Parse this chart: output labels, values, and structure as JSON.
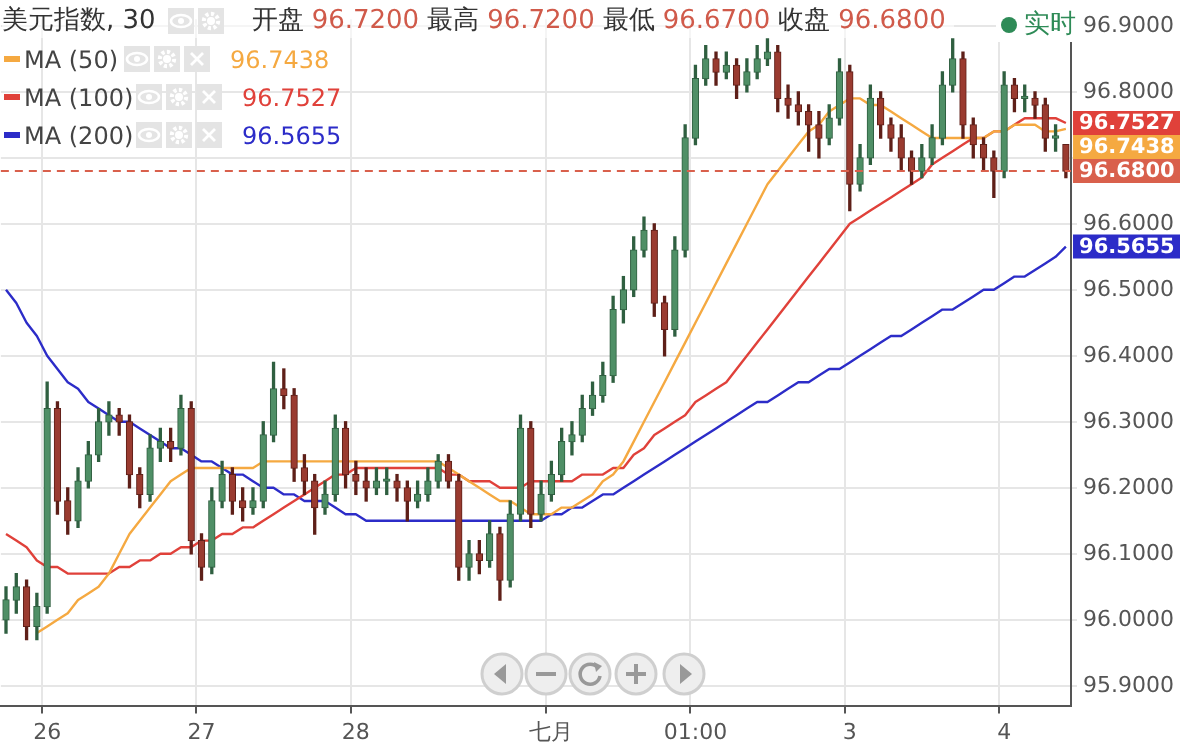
{
  "chart_data": {
    "type": "candlestick",
    "title": "美元指数, 30",
    "subtitle": "开盘 96.7200 最高 96.7200 最低 96.6700 收盘 96.6800",
    "annotations": [
      "实时"
    ],
    "categories": [
      null,
      null,
      null,
      null,
      "26",
      null,
      null,
      null,
      null,
      null,
      null,
      null,
      null,
      null,
      null,
      null,
      null,
      null,
      null,
      "27",
      null,
      null,
      null,
      null,
      null,
      null,
      null,
      null,
      null,
      null,
      null,
      null,
      null,
      null,
      "28",
      null,
      null,
      null,
      null,
      null,
      null,
      null,
      null,
      null,
      null,
      null,
      null,
      null,
      null,
      null,
      null,
      null,
      null,
      "七月",
      null,
      null,
      null,
      null,
      null,
      null,
      null,
      null,
      null,
      null,
      null,
      null,
      null,
      "01:00",
      null,
      null,
      null,
      null,
      null,
      null,
      null,
      null,
      null,
      null,
      null,
      null,
      null,
      null,
      "3",
      null,
      null,
      null,
      null,
      null,
      null,
      null,
      null,
      null,
      null,
      null,
      null,
      null,
      null,
      "4",
      null,
      null,
      null,
      null,
      null,
      null
    ],
    "ohlc": [
      [
        96.0,
        96.05,
        95.98,
        96.03
      ],
      [
        96.03,
        96.07,
        96.01,
        96.05
      ],
      [
        96.05,
        96.06,
        95.97,
        95.99
      ],
      [
        95.99,
        96.04,
        95.97,
        96.02
      ],
      [
        96.02,
        96.36,
        96.01,
        96.32
      ],
      [
        96.32,
        96.33,
        96.16,
        96.18
      ],
      [
        96.18,
        96.2,
        96.13,
        96.15
      ],
      [
        96.15,
        96.23,
        96.14,
        96.21
      ],
      [
        96.21,
        96.27,
        96.2,
        96.25
      ],
      [
        96.25,
        96.32,
        96.24,
        96.3
      ],
      [
        96.3,
        96.33,
        96.28,
        96.31
      ],
      [
        96.31,
        96.32,
        96.28,
        96.3
      ],
      [
        96.3,
        96.31,
        96.2,
        96.22
      ],
      [
        96.22,
        96.23,
        96.17,
        96.19
      ],
      [
        96.19,
        96.28,
        96.18,
        96.26
      ],
      [
        96.26,
        96.29,
        96.24,
        96.27
      ],
      [
        96.27,
        96.29,
        96.24,
        96.26
      ],
      [
        96.26,
        96.34,
        96.25,
        96.32
      ],
      [
        96.32,
        96.33,
        96.1,
        96.12
      ],
      [
        96.12,
        96.13,
        96.06,
        96.08
      ],
      [
        96.08,
        96.2,
        96.07,
        96.18
      ],
      [
        96.18,
        96.24,
        96.17,
        96.22
      ],
      [
        96.22,
        96.23,
        96.16,
        96.18
      ],
      [
        96.18,
        96.2,
        96.15,
        96.17
      ],
      [
        96.17,
        96.2,
        96.16,
        96.18
      ],
      [
        96.18,
        96.3,
        96.17,
        96.28
      ],
      [
        96.28,
        96.39,
        96.27,
        96.35
      ],
      [
        96.35,
        96.38,
        96.32,
        96.34
      ],
      [
        96.34,
        96.35,
        96.21,
        96.23
      ],
      [
        96.23,
        96.25,
        96.19,
        96.21
      ],
      [
        96.21,
        96.22,
        96.13,
        96.17
      ],
      [
        96.17,
        96.21,
        96.16,
        96.19
      ],
      [
        96.19,
        96.31,
        96.18,
        96.29
      ],
      [
        96.29,
        96.3,
        96.2,
        96.22
      ],
      [
        96.22,
        96.24,
        96.19,
        96.21
      ],
      [
        96.21,
        96.23,
        96.18,
        96.2
      ],
      [
        96.2,
        96.23,
        96.19,
        96.21
      ],
      [
        96.21,
        96.23,
        96.19,
        96.21
      ],
      [
        96.21,
        96.22,
        96.18,
        96.2
      ],
      [
        96.2,
        96.21,
        96.15,
        96.18
      ],
      [
        96.18,
        96.21,
        96.17,
        96.19
      ],
      [
        96.19,
        96.23,
        96.18,
        96.21
      ],
      [
        96.21,
        96.25,
        96.2,
        96.24
      ],
      [
        96.24,
        96.25,
        96.2,
        96.21
      ],
      [
        96.21,
        96.22,
        96.06,
        96.08
      ],
      [
        96.08,
        96.12,
        96.06,
        96.1
      ],
      [
        96.1,
        96.12,
        96.07,
        96.09
      ],
      [
        96.09,
        96.15,
        96.08,
        96.13
      ],
      [
        96.13,
        96.14,
        96.03,
        96.06
      ],
      [
        96.06,
        96.18,
        96.05,
        96.16
      ],
      [
        96.16,
        96.31,
        96.15,
        96.29
      ],
      [
        96.29,
        96.3,
        96.14,
        96.16
      ],
      [
        96.16,
        96.21,
        96.15,
        96.19
      ],
      [
        96.19,
        96.24,
        96.18,
        96.22
      ],
      [
        96.22,
        96.29,
        96.21,
        96.27
      ],
      [
        96.27,
        96.3,
        96.25,
        96.28
      ],
      [
        96.28,
        96.34,
        96.27,
        96.32
      ],
      [
        96.32,
        96.36,
        96.31,
        96.34
      ],
      [
        96.34,
        96.39,
        96.33,
        96.37
      ],
      [
        96.37,
        96.49,
        96.36,
        96.47
      ],
      [
        96.47,
        96.52,
        96.45,
        96.5
      ],
      [
        96.5,
        96.58,
        96.49,
        96.56
      ],
      [
        96.56,
        96.61,
        96.55,
        96.59
      ],
      [
        96.59,
        96.6,
        96.46,
        96.48
      ],
      [
        96.48,
        96.49,
        96.4,
        96.44
      ],
      [
        96.44,
        96.58,
        96.43,
        96.56
      ],
      [
        96.56,
        96.75,
        96.55,
        96.73
      ],
      [
        96.73,
        96.84,
        96.72,
        96.82
      ],
      [
        96.82,
        96.87,
        96.81,
        96.85
      ],
      [
        96.85,
        96.86,
        96.81,
        96.83
      ],
      [
        96.83,
        96.86,
        96.82,
        96.84
      ],
      [
        96.84,
        96.85,
        96.79,
        96.81
      ],
      [
        96.81,
        96.85,
        96.8,
        96.83
      ],
      [
        96.83,
        96.87,
        96.82,
        96.85
      ],
      [
        96.85,
        96.88,
        96.84,
        96.86
      ],
      [
        96.86,
        96.87,
        96.77,
        96.79
      ],
      [
        96.79,
        96.81,
        96.76,
        96.78
      ],
      [
        96.78,
        96.8,
        96.75,
        96.77
      ],
      [
        96.77,
        96.78,
        96.71,
        96.75
      ],
      [
        96.75,
        96.77,
        96.7,
        96.73
      ],
      [
        96.73,
        96.78,
        96.72,
        96.76
      ],
      [
        96.76,
        96.85,
        96.75,
        96.83
      ],
      [
        96.83,
        96.84,
        96.62,
        96.66
      ],
      [
        96.66,
        96.72,
        96.65,
        96.7
      ],
      [
        96.7,
        96.81,
        96.69,
        96.79
      ],
      [
        96.79,
        96.8,
        96.73,
        96.75
      ],
      [
        96.75,
        96.76,
        96.71,
        96.73
      ],
      [
        96.73,
        96.75,
        96.68,
        96.7
      ],
      [
        96.7,
        96.71,
        96.66,
        96.68
      ],
      [
        96.68,
        96.72,
        96.67,
        96.7
      ],
      [
        96.7,
        96.75,
        96.69,
        96.73
      ],
      [
        96.73,
        96.83,
        96.72,
        96.81
      ],
      [
        96.81,
        96.88,
        96.8,
        96.85
      ],
      [
        96.85,
        96.86,
        96.73,
        96.75
      ],
      [
        96.75,
        96.76,
        96.7,
        96.72
      ],
      [
        96.72,
        96.73,
        96.68,
        96.7
      ],
      [
        96.7,
        96.71,
        96.64,
        96.68
      ],
      [
        96.68,
        96.83,
        96.67,
        96.81
      ],
      [
        96.81,
        96.82,
        96.77,
        96.79
      ],
      [
        96.79,
        96.81,
        96.77,
        96.79
      ],
      [
        96.79,
        96.8,
        96.76,
        96.78
      ],
      [
        96.78,
        96.79,
        96.71,
        96.73
      ],
      [
        96.73,
        96.75,
        96.71,
        96.73
      ],
      [
        96.72,
        96.72,
        96.67,
        96.68
      ]
    ],
    "series": [
      {
        "name": "MA (50)",
        "type": "line",
        "color": "#f5a941",
        "values": [
          null,
          null,
          null,
          95.98,
          95.99,
          96.0,
          96.01,
          96.03,
          96.04,
          96.05,
          96.07,
          96.1,
          96.13,
          96.15,
          96.17,
          96.19,
          96.21,
          96.22,
          96.23,
          96.23,
          96.23,
          96.23,
          96.23,
          96.23,
          96.23,
          96.24,
          96.24,
          96.24,
          96.24,
          96.24,
          96.24,
          96.24,
          96.24,
          96.24,
          96.24,
          96.24,
          96.24,
          96.24,
          96.24,
          96.24,
          96.24,
          96.24,
          96.24,
          96.23,
          96.22,
          96.21,
          96.2,
          96.19,
          96.18,
          96.18,
          96.17,
          96.16,
          96.16,
          96.16,
          96.17,
          96.17,
          96.18,
          96.19,
          96.21,
          96.22,
          96.24,
          96.27,
          96.3,
          96.33,
          96.36,
          96.39,
          96.42,
          96.45,
          96.48,
          96.51,
          96.54,
          96.57,
          96.6,
          96.63,
          96.66,
          96.68,
          96.7,
          96.72,
          96.74,
          96.75,
          96.77,
          96.78,
          96.79,
          96.79,
          96.78,
          96.78,
          96.77,
          96.76,
          96.75,
          96.74,
          96.73,
          96.73,
          96.73,
          96.73,
          96.73,
          96.73,
          96.74,
          96.74,
          96.75,
          96.75,
          96.75,
          96.74,
          96.74,
          96.7438
        ],
        "value_labels": [
          null,
          null,
          null,
          null,
          null,
          null,
          null,
          null,
          null,
          null,
          null,
          null,
          null,
          null,
          null,
          null,
          null,
          null,
          null,
          null,
          null,
          null,
          null,
          null,
          null,
          null,
          null,
          null,
          null,
          null,
          null,
          null,
          null,
          null,
          null,
          null,
          null,
          null,
          null,
          null,
          null,
          null,
          null,
          null,
          null,
          null,
          null,
          null,
          null,
          null,
          null,
          null,
          null,
          null,
          null,
          null,
          null,
          null,
          null,
          null,
          null,
          null,
          null,
          null,
          null,
          null,
          null,
          null,
          null,
          null,
          null,
          null,
          null,
          null,
          null,
          null,
          null,
          null,
          null,
          null,
          null,
          null,
          null,
          null,
          null,
          null,
          null,
          null,
          null,
          null,
          null,
          null,
          null,
          null,
          null,
          null,
          null,
          null,
          null,
          null,
          null,
          null,
          null,
          "96.7438"
        ]
      },
      {
        "name": "MA (100)",
        "type": "line",
        "color": "#e0413a",
        "values": [
          96.13,
          96.12,
          96.11,
          96.09,
          96.08,
          96.08,
          96.07,
          96.07,
          96.07,
          96.07,
          96.07,
          96.08,
          96.08,
          96.09,
          96.09,
          96.1,
          96.1,
          96.11,
          96.11,
          96.12,
          96.12,
          96.13,
          96.13,
          96.14,
          96.14,
          96.15,
          96.16,
          96.17,
          96.18,
          96.19,
          96.2,
          96.21,
          96.22,
          96.22,
          96.23,
          96.23,
          96.23,
          96.23,
          96.23,
          96.23,
          96.23,
          96.23,
          96.23,
          96.22,
          96.22,
          96.21,
          96.21,
          96.21,
          96.2,
          96.2,
          96.2,
          96.21,
          96.21,
          96.21,
          96.21,
          96.21,
          96.22,
          96.22,
          96.22,
          96.23,
          96.23,
          96.25,
          96.26,
          96.28,
          96.29,
          96.3,
          96.31,
          96.33,
          96.34,
          96.35,
          96.36,
          96.38,
          96.4,
          96.42,
          96.44,
          96.46,
          96.48,
          96.5,
          96.52,
          96.54,
          96.56,
          96.58,
          96.6,
          96.61,
          96.62,
          96.63,
          96.64,
          96.65,
          96.66,
          96.67,
          96.69,
          96.7,
          96.71,
          96.72,
          96.73,
          96.73,
          96.74,
          96.74,
          96.75,
          96.76,
          96.76,
          96.76,
          96.76,
          96.7527
        ],
        "value_labels": [
          null,
          null,
          null,
          null,
          null,
          null,
          null,
          null,
          null,
          null,
          null,
          null,
          null,
          null,
          null,
          null,
          null,
          null,
          null,
          null,
          null,
          null,
          null,
          null,
          null,
          null,
          null,
          null,
          null,
          null,
          null,
          null,
          null,
          null,
          null,
          null,
          null,
          null,
          null,
          null,
          null,
          null,
          null,
          null,
          null,
          null,
          null,
          null,
          null,
          null,
          null,
          null,
          null,
          null,
          null,
          null,
          null,
          null,
          null,
          null,
          null,
          null,
          null,
          null,
          null,
          null,
          null,
          null,
          null,
          null,
          null,
          null,
          null,
          null,
          null,
          null,
          null,
          null,
          null,
          null,
          null,
          null,
          null,
          null,
          null,
          null,
          null,
          null,
          null,
          null,
          null,
          null,
          null,
          null,
          null,
          null,
          null,
          null,
          null,
          null,
          null,
          null,
          null,
          "96.7527"
        ]
      },
      {
        "name": "MA (200)",
        "type": "line",
        "color": "#2c2cc8",
        "values": [
          96.5,
          96.48,
          96.45,
          96.43,
          96.4,
          96.38,
          96.36,
          96.35,
          96.33,
          96.32,
          96.31,
          96.3,
          96.3,
          96.29,
          96.28,
          96.27,
          96.26,
          96.26,
          96.25,
          96.24,
          96.24,
          96.23,
          96.22,
          96.22,
          96.21,
          96.2,
          96.2,
          96.19,
          96.19,
          96.18,
          96.18,
          96.18,
          96.17,
          96.16,
          96.16,
          96.15,
          96.15,
          96.15,
          96.15,
          96.15,
          96.15,
          96.15,
          96.15,
          96.15,
          96.15,
          96.15,
          96.15,
          96.15,
          96.15,
          96.15,
          96.15,
          96.15,
          96.15,
          96.16,
          96.16,
          96.17,
          96.17,
          96.18,
          96.19,
          96.19,
          96.2,
          96.21,
          96.22,
          96.23,
          96.24,
          96.25,
          96.26,
          96.27,
          96.28,
          96.29,
          96.3,
          96.31,
          96.32,
          96.33,
          96.33,
          96.34,
          96.35,
          96.36,
          96.36,
          96.37,
          96.38,
          96.38,
          96.39,
          96.4,
          96.41,
          96.42,
          96.43,
          96.43,
          96.44,
          96.45,
          96.46,
          96.47,
          96.47,
          96.48,
          96.49,
          96.5,
          96.5,
          96.51,
          96.52,
          96.52,
          96.53,
          96.54,
          96.55,
          96.5655
        ],
        "value_labels": [
          null,
          null,
          null,
          null,
          null,
          null,
          null,
          null,
          null,
          null,
          null,
          null,
          null,
          null,
          null,
          null,
          null,
          null,
          null,
          null,
          null,
          null,
          null,
          null,
          null,
          null,
          null,
          null,
          null,
          null,
          null,
          null,
          null,
          null,
          null,
          null,
          null,
          null,
          null,
          null,
          null,
          null,
          null,
          null,
          null,
          null,
          null,
          null,
          null,
          null,
          null,
          null,
          null,
          null,
          null,
          null,
          null,
          null,
          null,
          null,
          null,
          null,
          null,
          null,
          null,
          null,
          null,
          null,
          null,
          null,
          null,
          null,
          null,
          null,
          null,
          null,
          null,
          null,
          null,
          null,
          null,
          null,
          null,
          null,
          null,
          null,
          null,
          null,
          null,
          null,
          null,
          null,
          null,
          null,
          null,
          null,
          null,
          null,
          null,
          null,
          null,
          null,
          null,
          "96.5655"
        ]
      }
    ],
    "ylim": [
      95.87,
      96.91
    ],
    "yticks": [
      {
        "value": 95.9,
        "label": "95.9000"
      },
      {
        "value": 96.0,
        "label": "96.0000"
      },
      {
        "value": 96.1,
        "label": "96.1000"
      },
      {
        "value": 96.2,
        "label": "96.2000"
      },
      {
        "value": 96.3,
        "label": "96.3000"
      },
      {
        "value": 96.4,
        "label": "96.4000"
      },
      {
        "value": 96.5,
        "label": "96.5000"
      },
      {
        "value": 96.6,
        "label": "96.6000"
      },
      {
        "value": 96.7,
        "label": null
      },
      {
        "value": 96.8,
        "label": "96.8000"
      },
      {
        "value": 96.9,
        "label": "96.9000"
      }
    ],
    "ref_lines": [
      {
        "axis": "y",
        "value": 96.68,
        "label": "96.6800",
        "color": "#d9604c",
        "line_style": "dashed"
      }
    ],
    "grid": true,
    "legend": "top left",
    "marker": "none",
    "line_style": "solid"
  }
}
